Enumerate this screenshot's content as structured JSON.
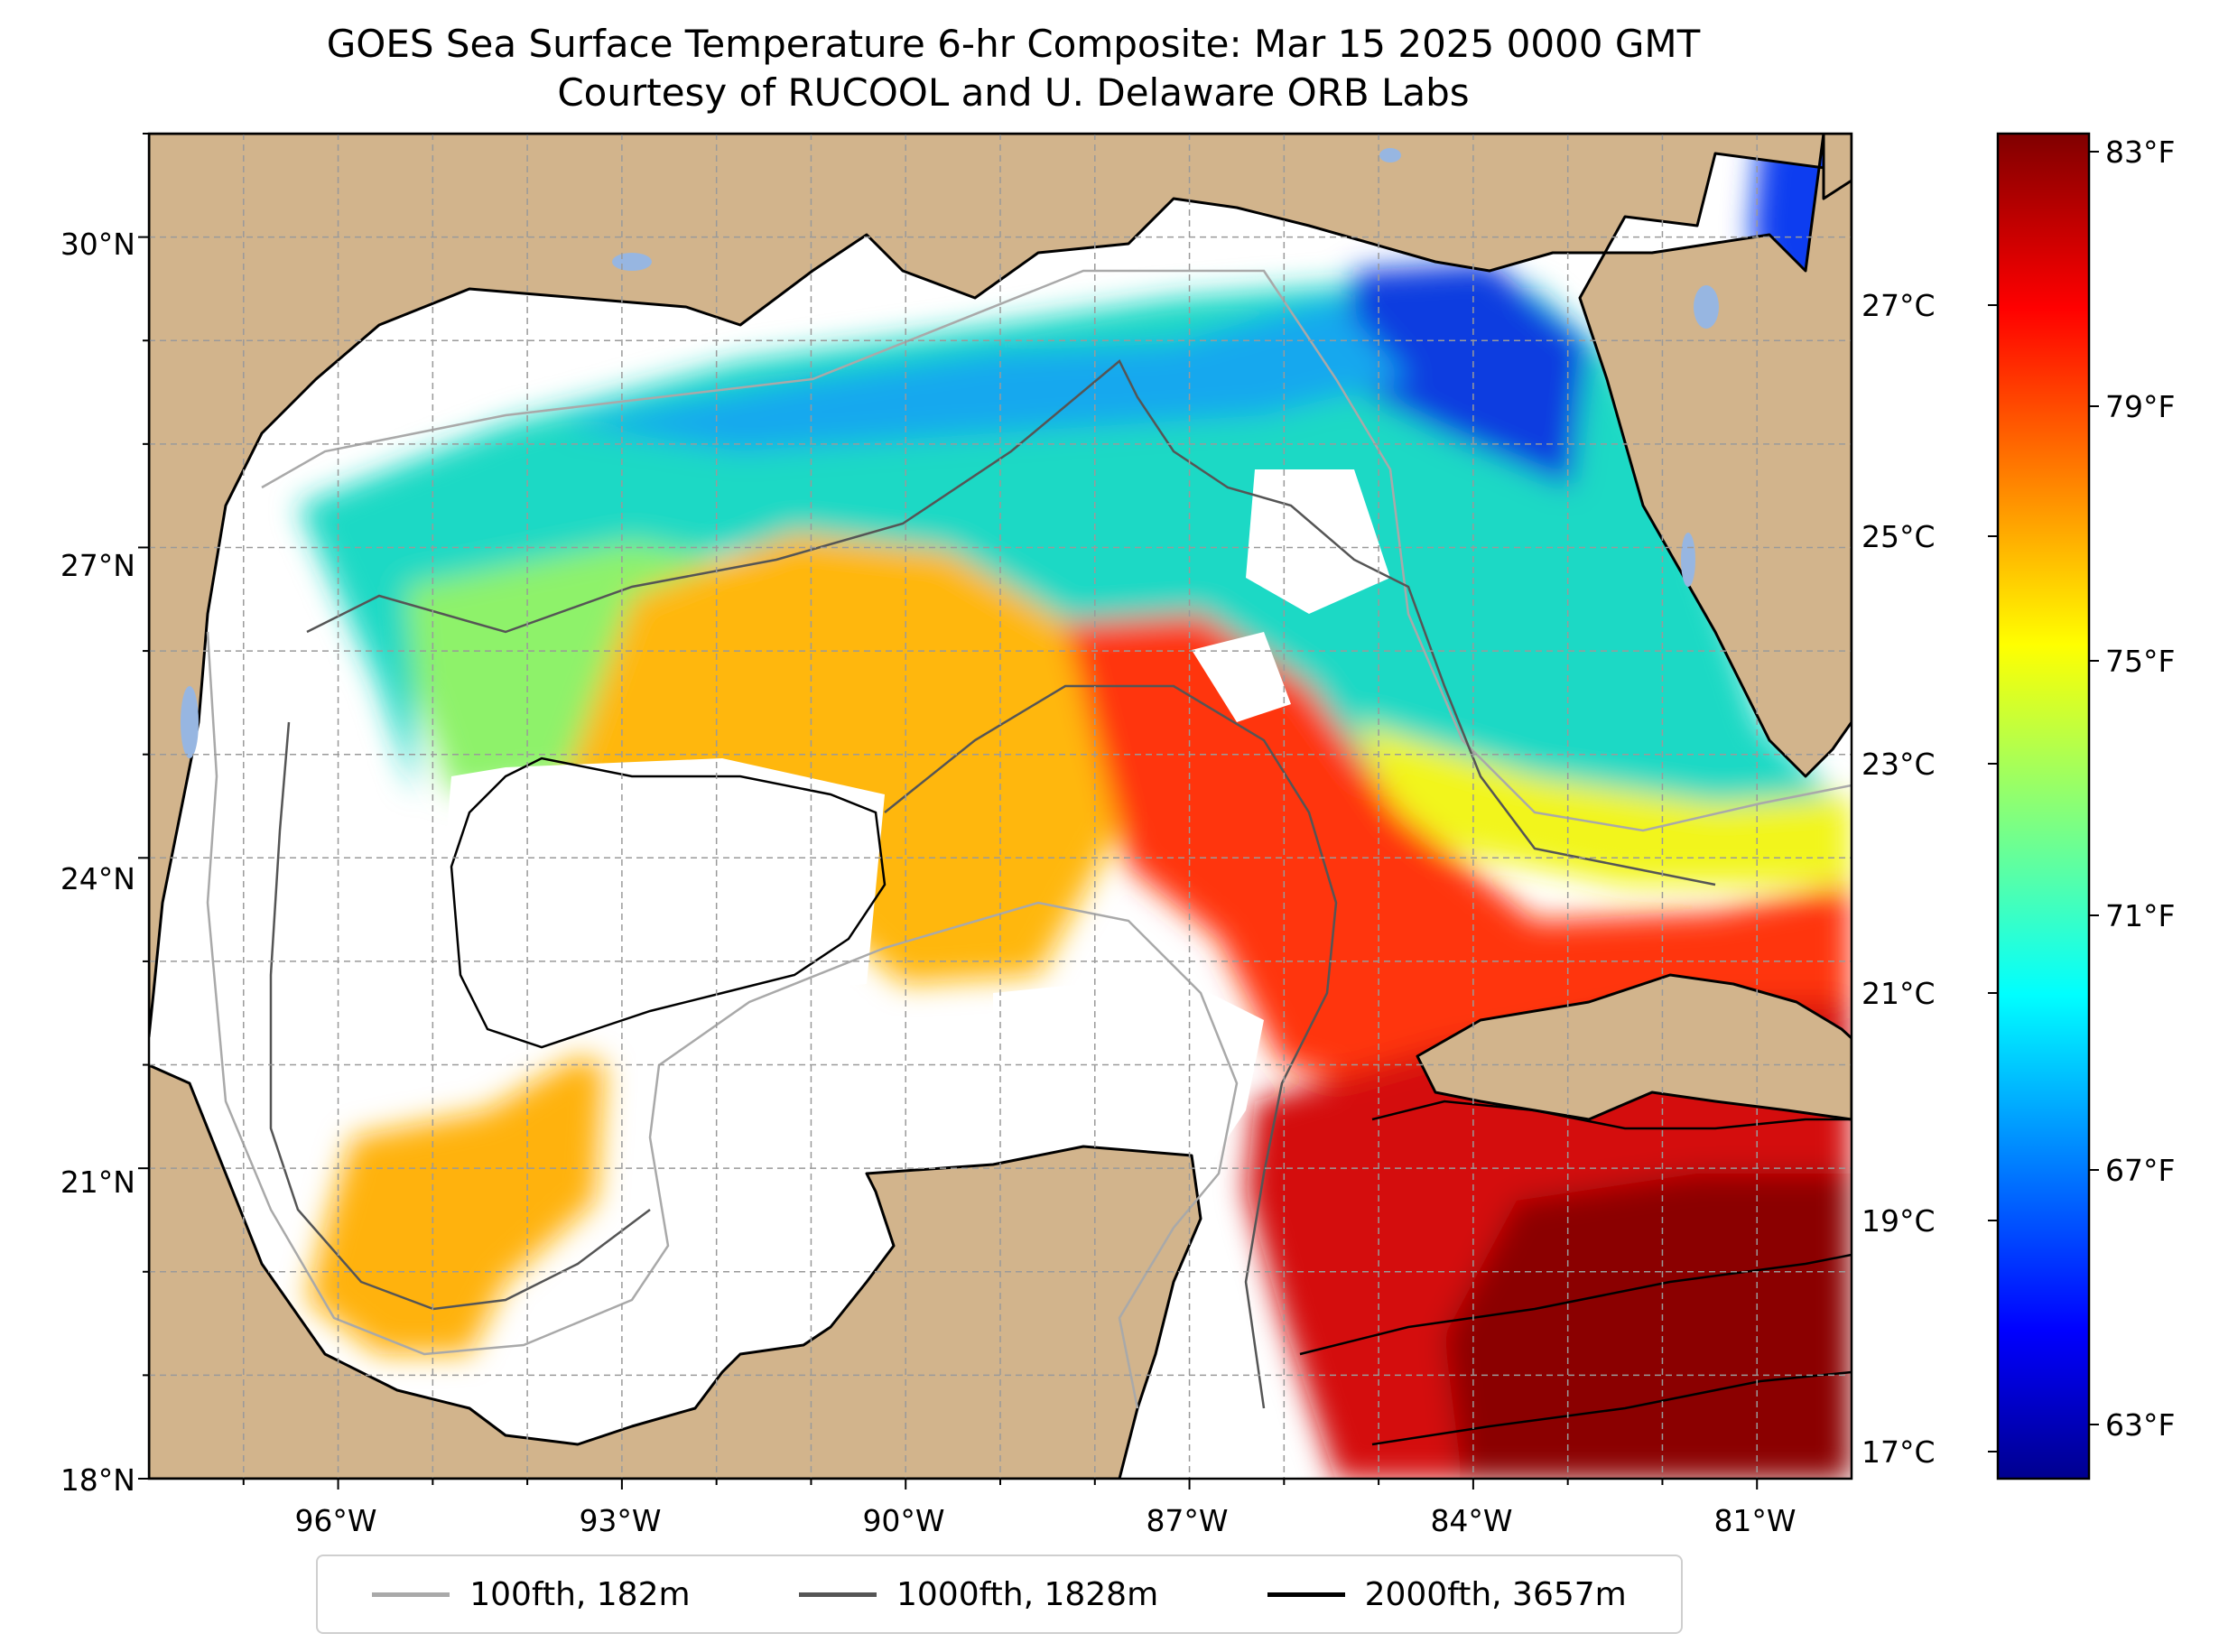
{
  "title": "GOES Sea Surface Temperature 6-hr Composite: Mar 15 2025 0000 GMT",
  "subtitle": "Courtesy of RUCOOL and U. Delaware ORB Labs",
  "map": {
    "lon_labels": [
      "96°W",
      "93°W",
      "90°W",
      "87°W",
      "84°W",
      "81°W"
    ],
    "lat_labels": [
      "30°N",
      "27°N",
      "24°N",
      "21°N",
      "18°N"
    ],
    "lon_range": [
      -98,
      -80
    ],
    "lat_range": [
      18,
      31
    ],
    "land_color": "#d2b48c",
    "lake_color": "#97b6e1",
    "gridlines": true
  },
  "colorbar": {
    "celsius_labels": [
      "27°C",
      "25°C",
      "23°C",
      "21°C",
      "19°C",
      "17°C"
    ],
    "fahrenheit_labels": [
      "83°F",
      "79°F",
      "75°F",
      "71°F",
      "67°F",
      "63°F"
    ],
    "range_c": [
      16.8,
      28.3
    ],
    "colormap": "jet"
  },
  "legend": {
    "items": [
      {
        "label": "100fth, 182m",
        "color": "#a9a9a9"
      },
      {
        "label": "1000fth, 1828m",
        "color": "#555555"
      },
      {
        "label": "2000fth, 3657m",
        "color": "#000000"
      }
    ]
  }
}
